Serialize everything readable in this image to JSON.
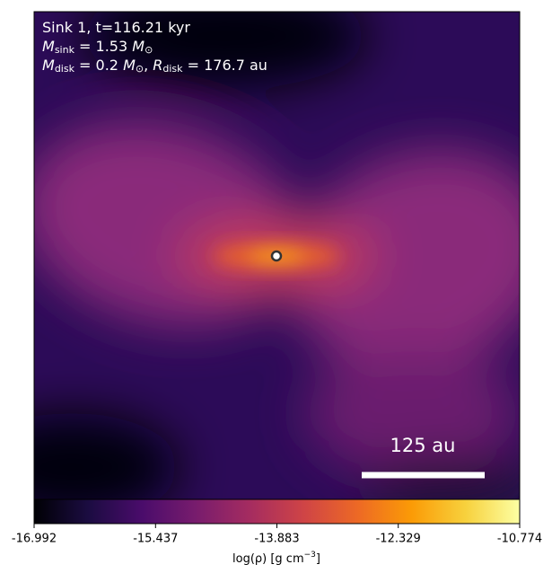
{
  "chart_data": {
    "type": "image",
    "annotations": [
      [
        {
          "text": "Sink 1, t=116.21 kyr"
        }
      ],
      [
        {
          "italic": "M"
        },
        {
          "sub": "sink"
        },
        {
          "text": " = 1.53 "
        },
        {
          "italic": "M"
        },
        {
          "sub": "⊙"
        }
      ],
      [
        {
          "italic": "M"
        },
        {
          "sub": "disk"
        },
        {
          "text": " = 0.2 "
        },
        {
          "italic": "M"
        },
        {
          "sub": "⊙"
        },
        {
          "text": ", "
        },
        {
          "italic": "R"
        },
        {
          "sub": "disk"
        },
        {
          "text": " = 176.7 au"
        }
      ]
    ],
    "scale_bar_label": "125 au",
    "colorbar": {
      "label": "log(ρ) [g cm",
      "label_sup": "−3",
      "label_end": "]",
      "clim": [
        -16.992,
        -10.774
      ],
      "ticks": [
        -16.992,
        -15.437,
        -13.883,
        -12.329,
        -10.774
      ],
      "colormap": [
        "#000004",
        "#1b0c41",
        "#4a0c6b",
        "#781c6d",
        "#a52c60",
        "#cf4446",
        "#ed6925",
        "#fb9b06",
        "#f7d13d",
        "#fcffa4"
      ]
    }
  }
}
